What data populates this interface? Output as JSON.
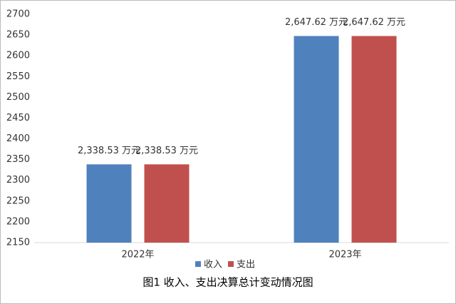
{
  "chart_data": {
    "type": "bar",
    "title": "图1 收入、支出决算总计变动情况图",
    "categories": [
      "2022年",
      "2023年"
    ],
    "series": [
      {
        "name": "收入",
        "color": "#4f81bd",
        "values": [
          2338.53,
          2647.62
        ],
        "value_labels": [
          "2,338.53 万元",
          "2,647.62 万元"
        ]
      },
      {
        "name": "支出",
        "color": "#c0504d",
        "values": [
          2338.53,
          2647.62
        ],
        "value_labels": [
          "2,338.53 万元",
          "2,647.62 万元"
        ]
      }
    ],
    "ylim": [
      2150,
      2700
    ],
    "yticks": [
      2150,
      2200,
      2250,
      2300,
      2350,
      2400,
      2450,
      2500,
      2550,
      2600,
      2650,
      2700
    ],
    "grid": false,
    "legend": "bottom"
  }
}
